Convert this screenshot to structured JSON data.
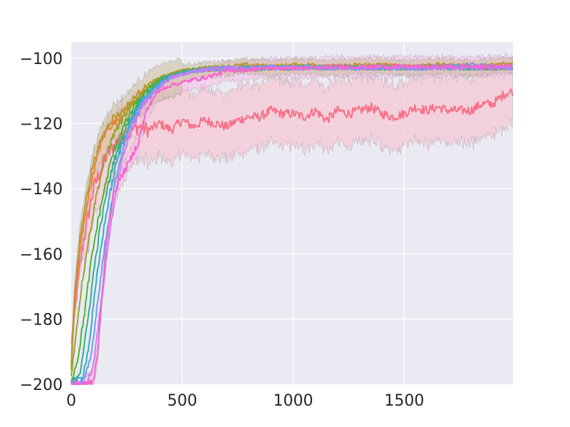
{
  "chart_data": {
    "type": "line",
    "title": "",
    "xlabel": "",
    "ylabel": "",
    "xlim": [
      0,
      1990
    ],
    "ylim": [
      -200,
      -95
    ],
    "x_ticks": [
      0,
      500,
      1000,
      1500
    ],
    "y_ticks": [
      -200,
      -180,
      -160,
      -140,
      -120,
      -100
    ],
    "x_tick_labels": [
      "0",
      "500",
      "1000",
      "1500"
    ],
    "y_tick_labels": [
      "−200",
      "−180",
      "−160",
      "−140",
      "−120",
      "−100"
    ],
    "grid": true,
    "legend": "none",
    "background_color": "#EAEAF2",
    "grid_color": "#FFFFFF",
    "series": [
      {
        "color": "#F77189",
        "band_color": "#F7C6D3",
        "band_width": 10,
        "x": [
          0,
          20,
          50,
          100,
          150,
          200,
          250,
          300,
          350,
          400,
          450,
          500,
          550,
          600,
          650,
          700,
          750,
          800,
          850,
          900,
          950,
          1000,
          1050,
          1100,
          1150,
          1200,
          1250,
          1300,
          1350,
          1400,
          1450,
          1500,
          1550,
          1600,
          1650,
          1700,
          1750,
          1800,
          1850,
          1900,
          1950,
          1990
        ],
        "values": [
          -188,
          -175,
          -158,
          -140,
          -131,
          -126,
          -123,
          -121,
          -122,
          -120,
          -122,
          -119,
          -121,
          -119,
          -120,
          -121,
          -119,
          -118,
          -118,
          -116,
          -117,
          -117,
          -118,
          -116,
          -119,
          -116,
          -117,
          -116,
          -115,
          -117,
          -118,
          -117,
          -115,
          -116,
          -115,
          -116,
          -116,
          -116,
          -114,
          -114,
          -111,
          -110
        ]
      },
      {
        "color": "#E68332",
        "x": [
          0,
          15,
          40,
          70,
          100,
          130,
          160,
          190,
          220,
          260,
          300,
          350,
          400,
          450,
          500,
          600,
          700,
          800,
          900,
          1000,
          1100,
          1200,
          1300,
          1400,
          1500,
          1600,
          1700,
          1800,
          1900,
          1990
        ],
        "values": [
          -195,
          -175,
          -158,
          -145,
          -135,
          -127,
          -122,
          -120,
          -118,
          -115,
          -112,
          -109,
          -107,
          -105,
          -104,
          -103.5,
          -103,
          -103,
          -103,
          -103,
          -102.5,
          -102.5,
          -103,
          -102,
          -102.5,
          -103,
          -102.5,
          -102,
          -103,
          -103
        ]
      },
      {
        "color": "#BB9832",
        "x": [
          0,
          15,
          40,
          70,
          100,
          130,
          160,
          190,
          220,
          260,
          300,
          350,
          400,
          450,
          500,
          600,
          700,
          800,
          900,
          1000,
          1100,
          1200,
          1300,
          1400,
          1500,
          1600,
          1700,
          1800,
          1900,
          1990
        ],
        "values": [
          -194,
          -172,
          -155,
          -142,
          -132,
          -126,
          -121,
          -118,
          -117,
          -114,
          -111,
          -108,
          -106,
          -105,
          -104,
          -103,
          -102.5,
          -102,
          -102.5,
          -102,
          -102,
          -102.5,
          -102,
          -102,
          -102.5,
          -102,
          -102,
          -102.5,
          -102,
          -101.5
        ]
      },
      {
        "color": "#97A431",
        "x": [
          0,
          20,
          50,
          80,
          110,
          140,
          170,
          200,
          240,
          280,
          320,
          360,
          400,
          450,
          500,
          600,
          700,
          800,
          900,
          1000,
          1100,
          1200,
          1300,
          1400,
          1500,
          1600,
          1700,
          1800,
          1900,
          1990
        ],
        "values": [
          -198,
          -185,
          -168,
          -155,
          -143,
          -134,
          -127,
          -122,
          -118,
          -114,
          -111,
          -108,
          -106,
          -105,
          -104,
          -103,
          -103,
          -103.5,
          -103,
          -103,
          -102.5,
          -103,
          -103,
          -102.5,
          -103,
          -103,
          -102.5,
          -103,
          -103,
          -103
        ]
      },
      {
        "color": "#50B131",
        "x": [
          0,
          30,
          60,
          90,
          120,
          150,
          180,
          210,
          250,
          290,
          330,
          370,
          410,
          460,
          520,
          600,
          700,
          800,
          900,
          1000,
          1100,
          1200,
          1300,
          1400,
          1500,
          1600,
          1700,
          1800,
          1900,
          1990
        ],
        "values": [
          -199,
          -192,
          -178,
          -162,
          -150,
          -140,
          -131,
          -125,
          -119,
          -114,
          -111,
          -108,
          -106,
          -105,
          -104,
          -103.5,
          -103,
          -103,
          -103,
          -103,
          -103,
          -102.5,
          -103,
          -103,
          -103,
          -102.5,
          -103,
          -103,
          -103,
          -103
        ]
      },
      {
        "color": "#36AD8B",
        "x": [
          0,
          40,
          70,
          100,
          130,
          160,
          190,
          220,
          260,
          300,
          340,
          380,
          420,
          470,
          530,
          600,
          700,
          800,
          900,
          1000,
          1100,
          1200,
          1300,
          1400,
          1500,
          1600,
          1700,
          1800,
          1900,
          1990
        ],
        "values": [
          -200,
          -196,
          -183,
          -166,
          -152,
          -141,
          -132,
          -126,
          -119,
          -114,
          -111,
          -108,
          -106,
          -105,
          -104,
          -103.5,
          -103,
          -103,
          -103,
          -102.5,
          -103,
          -103,
          -102.5,
          -103,
          -103,
          -103,
          -102.5,
          -103,
          -103,
          -103
        ]
      },
      {
        "color": "#38A9C5",
        "x": [
          0,
          50,
          80,
          110,
          140,
          170,
          200,
          230,
          270,
          310,
          350,
          390,
          430,
          480,
          540,
          600,
          700,
          800,
          900,
          1000,
          1100,
          1200,
          1300,
          1400,
          1500,
          1600,
          1700,
          1800,
          1900,
          1990
        ],
        "values": [
          -200,
          -198,
          -188,
          -170,
          -155,
          -143,
          -133,
          -126,
          -119,
          -114,
          -111,
          -108,
          -106,
          -105,
          -104,
          -103.5,
          -103,
          -103,
          -103,
          -103,
          -103,
          -103,
          -103,
          -103,
          -103,
          -103,
          -103,
          -103,
          -103,
          -103
        ]
      },
      {
        "color": "#6E9BF4",
        "x": [
          0,
          60,
          90,
          120,
          150,
          180,
          210,
          240,
          280,
          320,
          360,
          400,
          440,
          490,
          550,
          600,
          700,
          800,
          900,
          1000,
          1100,
          1200,
          1300,
          1400,
          1500,
          1600,
          1700,
          1800,
          1900,
          1990
        ],
        "values": [
          -200,
          -199,
          -191,
          -174,
          -158,
          -145,
          -134,
          -126,
          -119,
          -114,
          -111,
          -108,
          -106,
          -105,
          -104,
          -103.5,
          -103,
          -103,
          -102.5,
          -103,
          -102.5,
          -103,
          -103,
          -102.5,
          -103,
          -103,
          -102.5,
          -102,
          -102.5,
          -103
        ]
      },
      {
        "color": "#CC7AF4",
        "x": [
          0,
          70,
          100,
          130,
          160,
          190,
          220,
          250,
          290,
          330,
          370,
          410,
          450,
          500,
          550,
          600,
          700,
          800,
          900,
          1000,
          1100,
          1200,
          1300,
          1400,
          1500,
          1600,
          1700,
          1800,
          1900,
          1990
        ],
        "values": [
          -200,
          -200,
          -194,
          -178,
          -160,
          -146,
          -134,
          -126,
          -119,
          -114,
          -111,
          -108,
          -106,
          -105,
          -104,
          -103.5,
          -103,
          -103,
          -103,
          -103,
          -103,
          -103,
          -103,
          -103,
          -103,
          -103,
          -103,
          -103,
          -103,
          -103
        ]
      },
      {
        "color": "#F565CC",
        "band_color": "#F3C6E8",
        "band_width": 3,
        "x": [
          0,
          80,
          100,
          120,
          140,
          160,
          190,
          220,
          260,
          300,
          340,
          380,
          420,
          460,
          500,
          550,
          600,
          700,
          800,
          900,
          1000,
          1100,
          1200,
          1300,
          1400,
          1500,
          1600,
          1700,
          1800,
          1900,
          1990
        ],
        "values": [
          -200,
          -200,
          -199,
          -190,
          -172,
          -155,
          -142,
          -137,
          -132,
          -126,
          -116,
          -111,
          -109,
          -108,
          -107.5,
          -106.5,
          -106,
          -104,
          -103.5,
          -103,
          -103,
          -103,
          -102.5,
          -102.5,
          -102.5,
          -102.5,
          -102.5,
          -102.5,
          -102.5,
          -102.5,
          -102
        ]
      }
    ]
  }
}
